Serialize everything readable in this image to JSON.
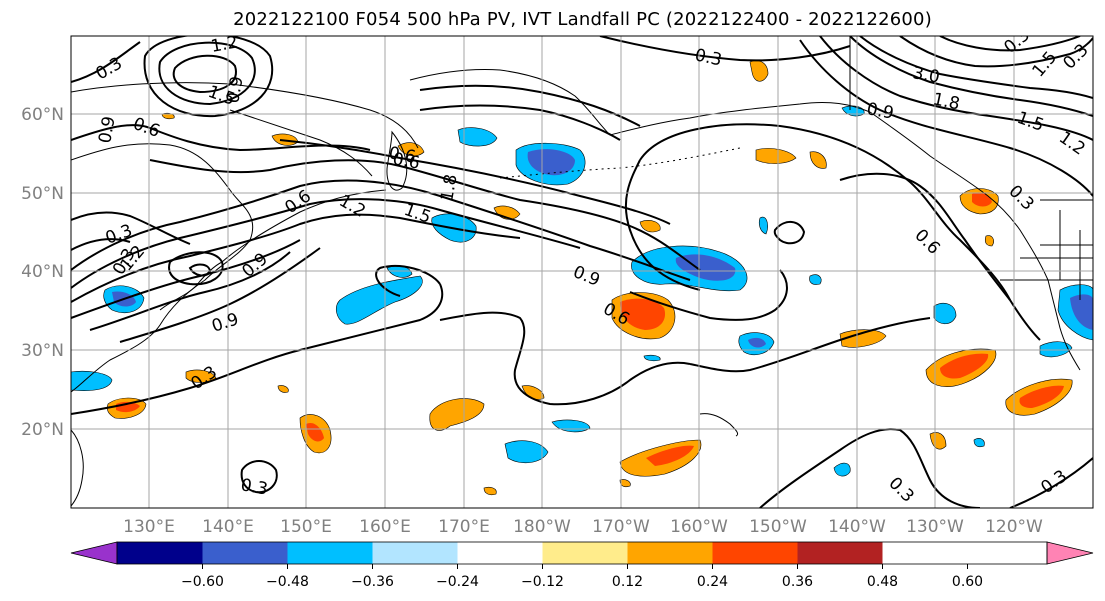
{
  "title": "2022122100 F054 500 hPa PV, IVT Landfall PC (2022122400 - 2022122600)",
  "map": {
    "lat_labels": [
      "60°N",
      "50°N",
      "40°N",
      "30°N",
      "20°N"
    ],
    "lon_labels": [
      "130°E",
      "140°E",
      "150°E",
      "160°E",
      "170°E",
      "180°W",
      "170°W",
      "160°W",
      "150°W",
      "140°W",
      "130°W",
      "120°W"
    ],
    "contour_labels": [
      "1.2",
      "1.5",
      "0.9",
      "0.3",
      "0.6",
      "0.9",
      "0.3",
      "0.9",
      "0.6",
      "0.6",
      "1.2",
      "1.5",
      "1.8",
      "0.3",
      "1.2",
      "0.9",
      "0.9",
      "0.3",
      "0.6",
      "0.6",
      "0.3",
      "0.3",
      "0.3",
      "0.3",
      "3.0",
      "1.8",
      "1.5",
      "1.2",
      "1.5",
      "0.9",
      "0.3",
      "0.6",
      "0.3",
      "0.3"
    ],
    "land_outline_color": "#000000",
    "contour_color": "#000000",
    "grid": true
  },
  "colorbar": {
    "ticks": [
      "−0.60",
      "−0.48",
      "−0.36",
      "−0.24",
      "−0.12",
      "0.12",
      "0.24",
      "0.36",
      "0.48",
      "0.60"
    ],
    "colors": [
      "#9932cc",
      "#00008b",
      "#3a5fcd",
      "#00bfff",
      "#b2e5ff",
      "#ffffff",
      "#ffec8b",
      "#ffa500",
      "#ff4500",
      "#b22222",
      "#ff83b4"
    ],
    "extend": "both"
  }
}
